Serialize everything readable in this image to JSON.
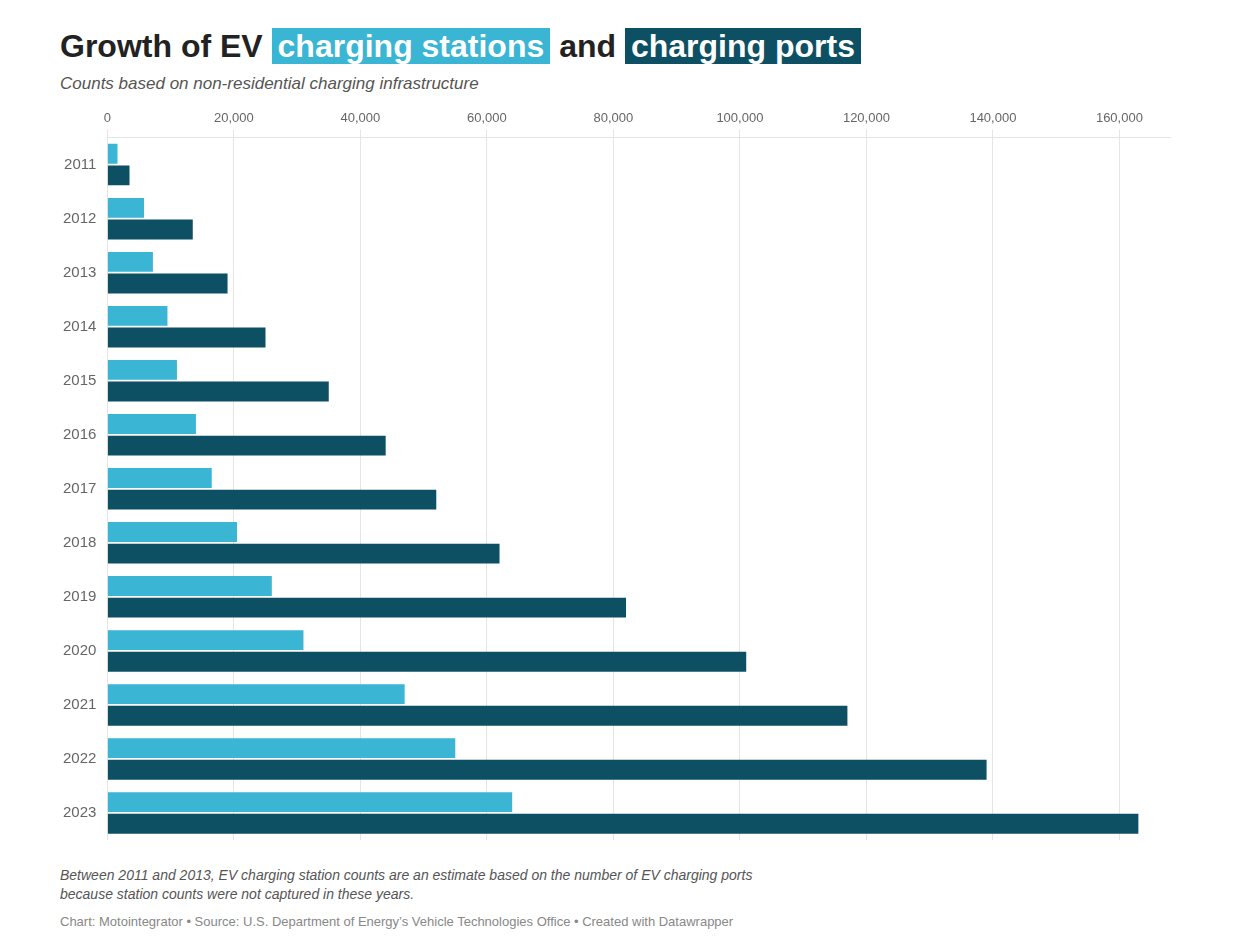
{
  "chart_data": {
    "type": "bar",
    "orientation": "horizontal",
    "title": "Growth of EV charging stations and charging ports",
    "subtitle": "Counts based on non-residential charging infrastructure",
    "categories": [
      "2011",
      "2012",
      "2013",
      "2014",
      "2015",
      "2016",
      "2017",
      "2018",
      "2019",
      "2020",
      "2021",
      "2022",
      "2023"
    ],
    "series": [
      {
        "name": "charging stations",
        "color": "#3ab5d4",
        "values": [
          1600,
          5800,
          7200,
          9500,
          11000,
          14000,
          16500,
          20500,
          26000,
          31000,
          47000,
          55000,
          64000
        ]
      },
      {
        "name": "charging ports",
        "color": "#0d4f63",
        "values": [
          3500,
          13500,
          19000,
          25000,
          35000,
          44000,
          52000,
          62000,
          82000,
          101000,
          117000,
          139000,
          163000
        ]
      }
    ],
    "xlim": [
      0,
      168000
    ],
    "xticks": [
      0,
      {
        "value": 20000,
        "label": "20,000"
      },
      {
        "value": 40000,
        "label": "40,000"
      },
      {
        "value": 60000,
        "label": "60,000"
      },
      {
        "value": 80000,
        "label": "80,000"
      },
      {
        "value": 100000,
        "label": "100,000"
      },
      {
        "value": 120000,
        "label": "120,000"
      },
      {
        "value": 140000,
        "label": "140,000"
      },
      {
        "value": 160000,
        "label": "160,000"
      }
    ],
    "grid": true,
    "annotations": [
      "Between 2011 and 2013, EV charging station counts are an estimate based on the number of EV charging ports",
      "because station counts were not captured in these years."
    ],
    "source": "Chart: Motointegrator • Source: U.S. Department of Energy’s Vehicle Technologies Office • Created with Datawrapper"
  }
}
